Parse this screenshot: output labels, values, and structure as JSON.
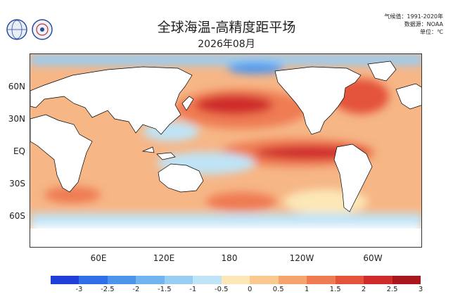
{
  "header": {
    "title": "全球海温-高精度距平场",
    "date": "2026年08月",
    "baseline": "气候值：1991-2020年",
    "source": "数据源：NOAA",
    "unit": "单位：℃"
  },
  "logos": [
    {
      "name": "wmo-logo",
      "text": "WMO"
    },
    {
      "name": "bcc-logo",
      "text": "BCC"
    }
  ],
  "axes": {
    "lat_labels": [
      "60N",
      "30N",
      "EQ",
      "30S",
      "60S"
    ],
    "lon_labels": [
      "60E",
      "120E",
      "180",
      "120W",
      "60W"
    ]
  },
  "colorbar": {
    "colors": [
      "#1f3fd8",
      "#2f6ee8",
      "#4d95ec",
      "#72b4f0",
      "#98cdf4",
      "#bfe4f7",
      "#fce7b7",
      "#f9c98f",
      "#f6a46d",
      "#ef7b52",
      "#e4523a",
      "#cf2b2b",
      "#a9161e"
    ],
    "tick_labels": [
      "-3",
      "-2.5",
      "-2",
      "-1.5",
      "-1",
      "-0.5",
      "0",
      "0.5",
      "1",
      "1.5",
      "2",
      "2.5",
      "3"
    ]
  }
}
